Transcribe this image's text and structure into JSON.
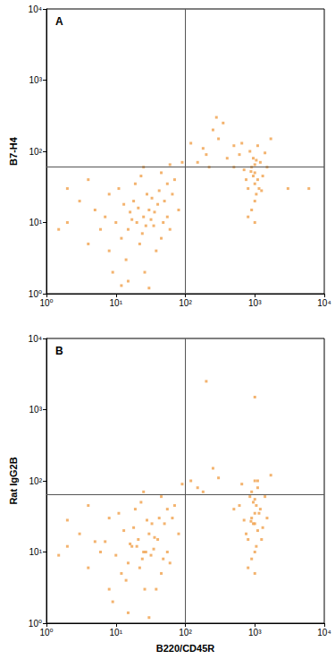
{
  "chart_data": [
    {
      "type": "scatter",
      "panel_label": "A",
      "y_label": "B7-H4",
      "color": "#f0a04b",
      "marker": "square",
      "log": true,
      "xlim": [
        1,
        10000
      ],
      "ylim": [
        1,
        10000
      ],
      "xticks": [
        {
          "value": 1,
          "label": "10⁰"
        },
        {
          "value": 10,
          "label": "10¹"
        },
        {
          "value": 100,
          "label": "10²"
        },
        {
          "value": 1000,
          "label": "10³"
        },
        {
          "value": 10000,
          "label": "10⁴"
        }
      ],
      "yticks": [
        {
          "value": 1,
          "label": "10⁰"
        },
        {
          "value": 10,
          "label": "10¹"
        },
        {
          "value": 100,
          "label": "10²"
        },
        {
          "value": 1000,
          "label": "10³"
        },
        {
          "value": 10000,
          "label": "10⁴"
        }
      ],
      "gates": {
        "x": 100,
        "y": 60
      },
      "x": [
        20,
        15,
        25,
        30,
        12,
        18,
        22,
        10,
        8,
        35,
        40,
        28,
        16,
        14,
        24,
        32,
        45,
        50,
        6,
        5,
        9,
        11,
        19,
        26,
        38,
        42,
        55,
        60,
        7,
        4,
        3,
        2,
        13,
        17,
        21,
        27,
        33,
        36,
        48,
        65,
        70,
        23,
        15,
        30,
        12,
        1.5,
        2,
        4,
        8,
        45,
        55,
        80,
        25,
        150,
        200,
        250,
        300,
        180,
        400,
        350,
        220,
        120,
        500,
        90,
        60,
        280,
        1000,
        900,
        1100,
        800,
        1200,
        950,
        1050,
        850,
        1000,
        700,
        1300,
        1000,
        900,
        1100,
        600,
        1500,
        750,
        1150,
        1000,
        950,
        880,
        1050,
        1250,
        650,
        1400,
        1000,
        800,
        3000,
        6000,
        500,
        1700
      ],
      "values": [
        10,
        8,
        12,
        15,
        6,
        20,
        5,
        10,
        4,
        9,
        18,
        25,
        14,
        3,
        7,
        11,
        6,
        20,
        8,
        15,
        2,
        30,
        35,
        2,
        4,
        28,
        12,
        8,
        12,
        5,
        20,
        10,
        18,
        11,
        16,
        9,
        22,
        14,
        10,
        25,
        40,
        45,
        1.5,
        1.2,
        1.3,
        8,
        30,
        40,
        25,
        50,
        35,
        15,
        60,
        70,
        90,
        200,
        150,
        110,
        80,
        250,
        60,
        130,
        120,
        70,
        65,
        300,
        50,
        60,
        40,
        30,
        70,
        80,
        25,
        100,
        35,
        55,
        45,
        20,
        15,
        120,
        90,
        60,
        40,
        30,
        65,
        45,
        52,
        75,
        28,
        130,
        95,
        10,
        12,
        30,
        30,
        60,
        150
      ]
    },
    {
      "type": "scatter",
      "panel_label": "B",
      "y_label": "Rat IgG2B",
      "x_label": "B220/CD45R",
      "color": "#f0a04b",
      "marker": "square",
      "log": true,
      "xlim": [
        1,
        10000
      ],
      "ylim": [
        1,
        10000
      ],
      "xticks": [
        {
          "value": 1,
          "label": "10⁰"
        },
        {
          "value": 10,
          "label": "10¹"
        },
        {
          "value": 100,
          "label": "10²"
        },
        {
          "value": 1000,
          "label": "10³"
        },
        {
          "value": 10000,
          "label": "10⁴"
        }
      ],
      "yticks": [
        {
          "value": 1,
          "label": "10⁰"
        },
        {
          "value": 10,
          "label": "10¹"
        },
        {
          "value": 100,
          "label": "10²"
        },
        {
          "value": 1000,
          "label": "10³"
        },
        {
          "value": 10000,
          "label": "10⁴"
        }
      ],
      "gates": {
        "x": 100,
        "y": 65
      },
      "x": [
        20,
        15,
        25,
        30,
        12,
        18,
        22,
        10,
        8,
        35,
        40,
        28,
        16,
        14,
        24,
        32,
        45,
        50,
        6,
        5,
        9,
        11,
        19,
        26,
        38,
        42,
        55,
        60,
        7,
        4,
        3,
        2,
        13,
        17,
        21,
        27,
        33,
        36,
        48,
        65,
        70,
        23,
        15,
        30,
        1.5,
        2,
        4,
        8,
        45,
        55,
        80,
        25,
        150,
        250,
        120,
        300,
        180,
        90,
        200,
        1000,
        900,
        1100,
        800,
        1200,
        950,
        1050,
        850,
        1000,
        700,
        1300,
        1000,
        900,
        1100,
        600,
        1500,
        750,
        1150,
        1000,
        950,
        880,
        1050,
        1250,
        650,
        1400,
        1000,
        800,
        1000,
        900,
        1100,
        500,
        1700,
        1000
      ],
      "values": [
        12,
        7,
        10,
        18,
        5,
        22,
        6,
        9,
        3,
        11,
        15,
        28,
        13,
        4,
        8,
        9,
        5,
        25,
        10,
        14,
        2,
        35,
        40,
        3,
        3,
        30,
        10,
        7,
        14,
        6,
        18,
        12,
        20,
        12,
        15,
        10,
        25,
        16,
        8,
        30,
        45,
        50,
        1.4,
        1.2,
        9,
        28,
        45,
        30,
        60,
        40,
        18,
        70,
        80,
        150,
        100,
        110,
        70,
        90,
        2500,
        25,
        30,
        20,
        15,
        40,
        50,
        12,
        60,
        35,
        28,
        22,
        10,
        8,
        80,
        45,
        30,
        18,
        35,
        55,
        25,
        27,
        45,
        15,
        90,
        60,
        5,
        6,
        1500,
        70,
        100,
        40,
        120,
        100
      ]
    }
  ]
}
